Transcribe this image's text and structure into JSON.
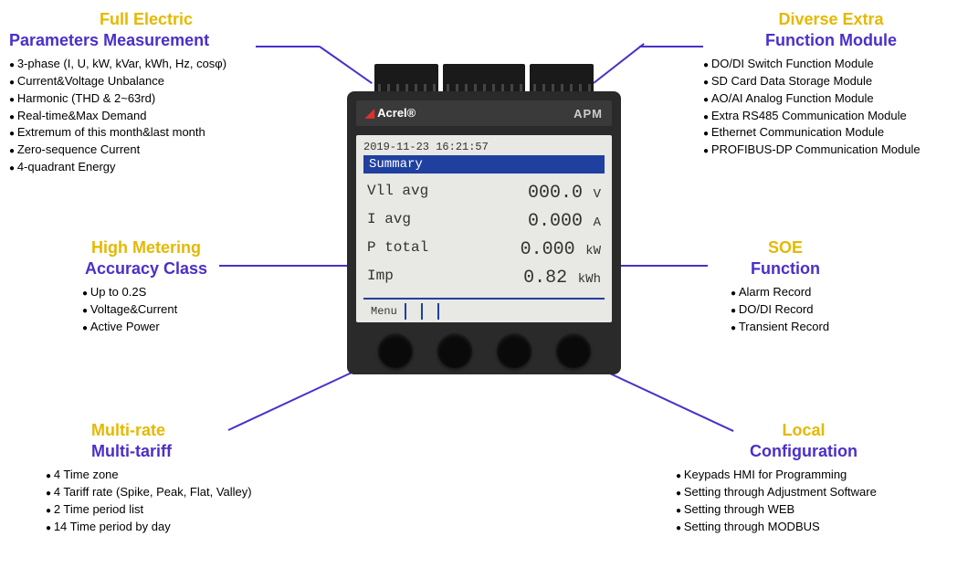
{
  "colors": {
    "title1": "#e6b800",
    "title2": "#4b2fc9",
    "line": "#4b2fc9"
  },
  "features": {
    "top_left": {
      "line1": "Full Electric",
      "line2": "Parameters Measurement",
      "items": [
        "3-phase (I, U, kW, kVar, kWh, Hz, cosφ)",
        "Current&Voltage Unbalance",
        "Harmonic (THD & 2~63rd)",
        "Real-time&Max Demand",
        "Extremum of this month&last month",
        "Zero-sequence Current",
        "4-quadrant Energy"
      ]
    },
    "top_right": {
      "line1": "Diverse Extra",
      "line2": "Function Module",
      "items": [
        "DO/DI Switch Function Module",
        "SD Card Data Storage Module",
        "AO/AI Analog Function Module",
        "Extra RS485 Communication Module",
        "Ethernet Communication Module",
        "PROFIBUS-DP Communication Module"
      ]
    },
    "mid_left": {
      "line1": "High Metering",
      "line2": "Accuracy Class",
      "items": [
        "Up to 0.2S",
        "Voltage&Current",
        "Active Power"
      ]
    },
    "mid_right": {
      "line1": "SOE",
      "line2": "Function",
      "items": [
        "Alarm Record",
        "DO/DI Record",
        "Transient Record"
      ]
    },
    "bot_left": {
      "line1": "Multi-rate",
      "line2": "Multi-tariff",
      "items": [
        "4 Time zone",
        "4 Tariff rate (Spike, Peak, Flat, Valley)",
        "2 Time period list",
        "14 Time period by day"
      ]
    },
    "bot_right": {
      "line1": "Local",
      "line2": "Configuration",
      "items": [
        "Keypads HMI for Programming",
        "Setting through Adjustment Software",
        "Setting through WEB",
        "Setting through MODBUS"
      ]
    }
  },
  "device": {
    "brand": "Acrel",
    "brand_suffix": "®",
    "model": "APM",
    "screen": {
      "datetime": "2019-11-23 16:21:57",
      "title": "Summary",
      "rows": [
        {
          "label": "Vll avg",
          "value": "000.0",
          "unit": "V"
        },
        {
          "label": "I avg",
          "value": "0.000",
          "unit": "A"
        },
        {
          "label": "P total",
          "value": "0.000",
          "unit": "kW"
        },
        {
          "label": "Imp",
          "value": "0.82",
          "unit": "kWh"
        }
      ],
      "menu": "Menu"
    }
  }
}
